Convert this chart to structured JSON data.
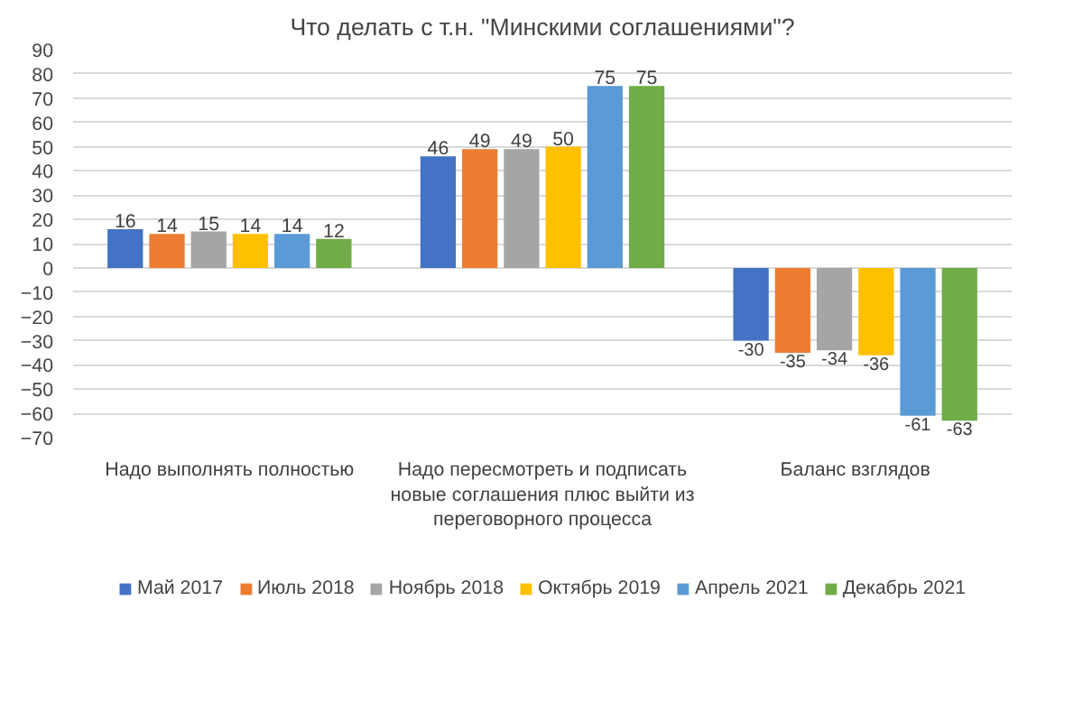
{
  "chart_data": {
    "type": "bar",
    "title": "Что делать с т.н. \"Минскими соглашениями\"?",
    "categories": [
      "Надо выполнять полностью",
      "Надо пересмотреть и подписать новые соглашения плюс выйти из переговорного процесса",
      "Баланс взглядов"
    ],
    "series": [
      {
        "name": "Май 2017",
        "color": "#4472c4",
        "values": [
          16,
          46,
          -30
        ]
      },
      {
        "name": "Июль 2018",
        "color": "#ed7d31",
        "values": [
          14,
          49,
          -35
        ]
      },
      {
        "name": "Ноябрь 2018",
        "color": "#a5a5a5",
        "values": [
          15,
          49,
          -34
        ]
      },
      {
        "name": "Октябрь 2019",
        "color": "#ffc000",
        "values": [
          14,
          50,
          -36
        ]
      },
      {
        "name": "Апрель 2021",
        "color": "#5b9bd5",
        "values": [
          14,
          75,
          -61
        ]
      },
      {
        "name": "Декабрь 2021",
        "color": "#70ad47",
        "values": [
          12,
          75,
          -63
        ]
      }
    ],
    "ylim": [
      -70,
      90
    ],
    "yticks": [
      -70,
      -60,
      -50,
      -40,
      -30,
      -20,
      -10,
      0,
      10,
      20,
      30,
      40,
      50,
      60,
      70,
      80,
      90
    ],
    "grid": "y",
    "legend": "bottom",
    "data_labels": true
  }
}
